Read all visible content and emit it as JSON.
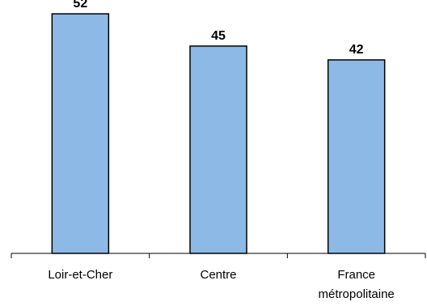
{
  "chart_data": {
    "type": "bar",
    "categories": [
      "Loir-et-Cher",
      "Centre",
      "France métropolitaine"
    ],
    "category_lines": [
      [
        "Loir-et-Cher"
      ],
      [
        "Centre"
      ],
      [
        "France",
        "métropolitaine"
      ]
    ],
    "values": [
      52,
      45,
      42
    ],
    "title": "",
    "xlabel": "",
    "ylabel": "",
    "ylim": [
      0,
      55
    ],
    "grid": false,
    "legend": "none",
    "bar_color": "#8DB9E6",
    "bar_outline": "#000000"
  }
}
